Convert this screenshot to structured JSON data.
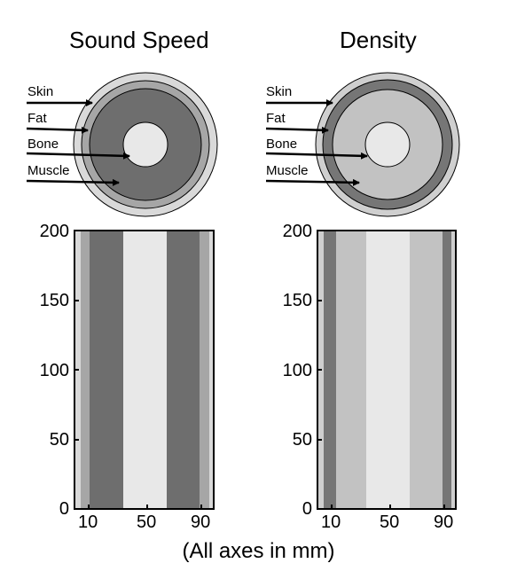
{
  "panels": [
    {
      "title": "Sound Speed",
      "labels": [
        "Skin",
        "Fat",
        "Bone",
        "Muscle"
      ],
      "y_ticks": [
        "200",
        "150",
        "100",
        "50",
        "0"
      ],
      "x_ticks": [
        "10",
        "50",
        "90"
      ],
      "layer_colors": {
        "skin": "#d9d9d9",
        "fat": "#a6a6a6",
        "muscle": "#6e6e6e",
        "bone": "#e8e8e8"
      }
    },
    {
      "title": "Density",
      "labels": [
        "Skin",
        "Fat",
        "Bone",
        "Muscle"
      ],
      "y_ticks": [
        "200",
        "150",
        "100",
        "50",
        "0"
      ],
      "x_ticks": [
        "10",
        "50",
        "90"
      ],
      "layer_colors": {
        "skin": "#cfcfcf",
        "fat": "#767676",
        "muscle": "#c2c2c2",
        "bone": "#e8e8e8"
      }
    }
  ],
  "footer": "(All axes in mm)"
}
